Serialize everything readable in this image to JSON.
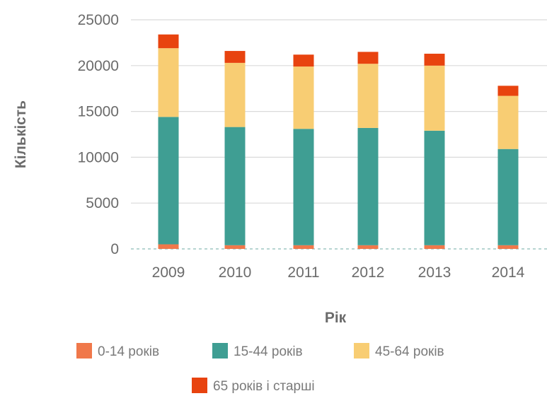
{
  "chart_data": {
    "type": "bar",
    "stacked": true,
    "categories": [
      "2009",
      "2010",
      "2011",
      "2012",
      "2013",
      "2014"
    ],
    "series": [
      {
        "name": "0-14 років",
        "values": [
          500,
          400,
          400,
          400,
          400,
          400
        ]
      },
      {
        "name": "15-44 років",
        "values": [
          13900,
          12900,
          12700,
          12800,
          12500,
          10500
        ]
      },
      {
        "name": "45-64 років",
        "values": [
          7500,
          7000,
          6800,
          7000,
          7100,
          5800
        ]
      },
      {
        "name": "65 років і старші",
        "values": [
          1500,
          1300,
          1300,
          1300,
          1300,
          1100
        ]
      }
    ],
    "colors": [
      "#f0784a",
      "#3f9e93",
      "#f8cd73",
      "#e8430f"
    ],
    "xlabel": "Рік",
    "ylabel": "Кількість",
    "ylim": [
      0,
      25000
    ],
    "yticks": [
      "0",
      "5000",
      "10000",
      "15000",
      "20000",
      "25000"
    ],
    "grid": true,
    "legend_position": "bottom"
  }
}
